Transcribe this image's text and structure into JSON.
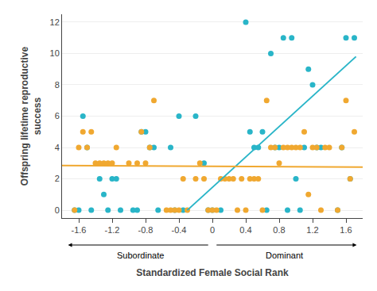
{
  "chart_data": {
    "type": "scatter",
    "xlabel": "Standardized Female Social Rank",
    "ylabel": "Offspring lifetime reproductive\nsuccess",
    "series": [
      {
        "type": "scatter",
        "color": "#29b5c8",
        "x": [
          -1.65,
          -1.6,
          -1.55,
          -1.5,
          -1.45,
          -1.35,
          -1.3,
          -1.25,
          -1.2,
          -1.15,
          -1.1,
          -0.95,
          -0.9,
          -0.85,
          -0.8,
          -0.75,
          -0.7,
          -0.65,
          -0.5,
          -0.45,
          -0.4,
          -0.35,
          -0.2,
          -0.1,
          -0.05,
          0.0,
          0.1,
          0.4,
          0.45,
          0.5,
          0.55,
          0.6,
          0.65,
          0.7,
          0.75,
          0.8,
          0.85,
          0.9,
          0.95,
          1.0,
          1.05,
          1.1,
          1.15,
          1.2,
          1.25,
          1.3,
          1.5,
          1.55,
          1.6,
          1.65,
          1.7
        ],
        "values": [
          0,
          0,
          6,
          4,
          0,
          2,
          1,
          0,
          2,
          2,
          0,
          0,
          0,
          5,
          5,
          4,
          4,
          0,
          4,
          0,
          6,
          0,
          6,
          3,
          0,
          0,
          0,
          12,
          5,
          4,
          4,
          5,
          0,
          10,
          4,
          4,
          11,
          0,
          11,
          2,
          0,
          4,
          9,
          8,
          4,
          4,
          0,
          4,
          11,
          2,
          11
        ]
      },
      {
        "type": "scatter",
        "color": "#f0a830",
        "x": [
          -1.65,
          -1.6,
          -1.55,
          -1.5,
          -1.45,
          -1.4,
          -1.35,
          -1.3,
          -1.25,
          -1.2,
          -1.15,
          -1.0,
          -0.9,
          -0.85,
          -0.8,
          -0.75,
          -0.7,
          -0.55,
          -0.5,
          -0.45,
          -0.4,
          -0.35,
          -0.3,
          -0.2,
          -0.15,
          -0.1,
          -0.05,
          0.0,
          0.05,
          0.1,
          0.15,
          0.2,
          0.25,
          0.3,
          0.35,
          0.4,
          0.45,
          0.5,
          0.55,
          0.6,
          0.65,
          0.7,
          0.75,
          0.8,
          0.85,
          0.9,
          0.95,
          1.0,
          1.05,
          1.1,
          1.15,
          1.2,
          1.25,
          1.3,
          1.35,
          1.4,
          1.5,
          1.55,
          1.6,
          1.65,
          1.7
        ],
        "values": [
          0,
          4,
          5,
          4,
          5,
          3,
          3,
          3,
          3,
          3,
          4,
          3,
          3,
          5,
          3,
          4,
          7,
          0,
          0,
          0,
          0,
          2,
          0,
          2,
          3,
          2,
          0,
          0,
          0,
          2,
          2,
          2,
          2,
          0,
          2,
          0,
          2,
          2,
          2,
          0,
          7,
          4,
          4,
          3,
          4,
          4,
          4,
          4,
          4,
          5,
          1,
          4,
          4,
          0,
          4,
          4,
          0,
          4,
          7,
          2,
          5
        ]
      },
      {
        "type": "line",
        "color": "#29b5c8",
        "x": [
          -0.3,
          1.72
        ],
        "values": [
          0.0,
          9.8
        ]
      },
      {
        "type": "line",
        "color": "#f0a830",
        "x": [
          -1.8,
          1.8
        ],
        "values": [
          2.85,
          2.75
        ]
      }
    ],
    "xlim": [
      -1.8,
      1.8
    ],
    "ylim": [
      -0.5,
      12.5
    ],
    "xticks": [
      -1.6,
      -1.2,
      -0.8,
      -0.4,
      0,
      0.4,
      0.8,
      1.2,
      1.6
    ],
    "yticks": [
      0,
      2,
      4,
      6,
      8,
      10,
      12
    ],
    "grid": "y",
    "annotations": [
      "Subordinate",
      "Dominant"
    ]
  }
}
